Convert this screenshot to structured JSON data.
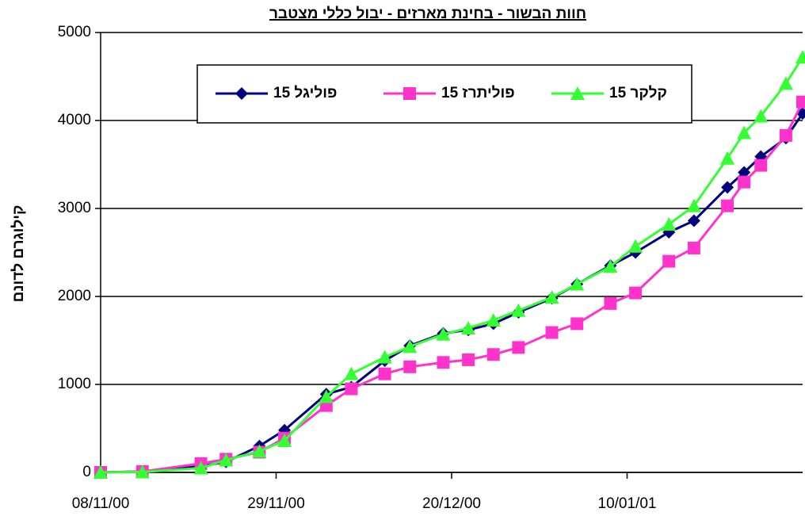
{
  "chart_data": {
    "type": "line",
    "title": "חוות הבשור - בחינת מארזים - יבול כללי מצטבר",
    "y_label": "קילוגרם לדונם",
    "x": [
      "2000-11-08",
      "2000-11-13",
      "2000-11-20",
      "2000-11-23",
      "2000-11-27",
      "2000-11-30",
      "2000-12-05",
      "2000-12-08",
      "2000-12-12",
      "2000-12-15",
      "2000-12-19",
      "2000-12-22",
      "2000-12-25",
      "2000-12-28",
      "2001-01-01",
      "2001-01-04",
      "2001-01-08",
      "2001-01-11",
      "2001-01-15",
      "2001-01-18",
      "2001-01-22",
      "2001-01-24",
      "2001-01-26",
      "2001-01-29",
      "2001-01-31"
    ],
    "xlim": [
      "2000-11-08",
      "2001-01-31"
    ],
    "xticks": [
      {
        "value": "2000-11-08",
        "label": "08/11/00"
      },
      {
        "value": "2000-11-29",
        "label": "29/11/00"
      },
      {
        "value": "2000-12-20",
        "label": "20/12/00"
      },
      {
        "value": "2001-01-10",
        "label": "10/01/01"
      }
    ],
    "ylim": [
      0,
      5000
    ],
    "yticks": [
      0,
      1000,
      2000,
      3000,
      4000,
      5000
    ],
    "grid": true,
    "series": [
      {
        "name": "פוליגל 15",
        "color": "#00007f",
        "marker": "diamond",
        "values": [
          0,
          10,
          70,
          120,
          300,
          480,
          890,
          970,
          1270,
          1440,
          1580,
          1620,
          1690,
          1820,
          1980,
          2140,
          2350,
          2500,
          2730,
          2860,
          3240,
          3410,
          3590,
          3800,
          4080
        ]
      },
      {
        "name": "פוליתרז 15",
        "color": "#ff33cc",
        "marker": "square",
        "values": [
          0,
          10,
          100,
          150,
          230,
          390,
          760,
          950,
          1120,
          1200,
          1250,
          1280,
          1340,
          1420,
          1590,
          1690,
          1920,
          2040,
          2400,
          2550,
          3030,
          3300,
          3490,
          3830,
          4210
        ]
      },
      {
        "name": "קלקר 15",
        "color": "#33ff33",
        "marker": "triangle",
        "values": [
          0,
          5,
          50,
          140,
          240,
          360,
          860,
          1120,
          1310,
          1430,
          1570,
          1640,
          1730,
          1840,
          1990,
          2140,
          2340,
          2570,
          2820,
          3030,
          3570,
          3860,
          4050,
          4420,
          4720
        ]
      }
    ]
  }
}
